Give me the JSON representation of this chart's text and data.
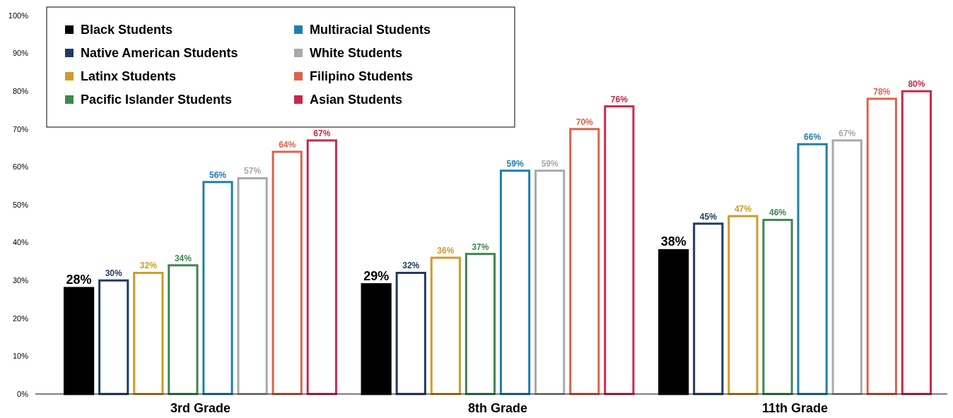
{
  "chart_data": {
    "type": "bar",
    "categories": [
      "3rd Grade",
      "8th Grade",
      "11th Grade"
    ],
    "series": [
      {
        "name": "Black Students",
        "color": "#000000",
        "values": [
          28,
          29,
          38
        ],
        "value_labels": [
          "28%",
          "29%",
          "38%"
        ]
      },
      {
        "name": "Native American Students",
        "color": "#1f3b63",
        "values": [
          30,
          32,
          45
        ],
        "value_labels": [
          "30%",
          "32%",
          "45%"
        ]
      },
      {
        "name": "Latinx Students",
        "color": "#d29a2a",
        "values": [
          32,
          36,
          47
        ],
        "value_labels": [
          "32%",
          "36%",
          "47%"
        ]
      },
      {
        "name": "Pacific Islander Students",
        "color": "#3f8550",
        "values": [
          34,
          37,
          46
        ],
        "value_labels": [
          "34%",
          "37%",
          "46%"
        ]
      },
      {
        "name": "Multiracial Students",
        "color": "#1f7db3",
        "values": [
          56,
          59,
          66
        ],
        "value_labels": [
          "56%",
          "59%",
          "66%"
        ]
      },
      {
        "name": "White Students",
        "color": "#a9a9a9",
        "values": [
          57,
          59,
          67
        ],
        "value_labels": [
          "57%",
          "59%",
          "67%"
        ]
      },
      {
        "name": "Filipino Students",
        "color": "#e0624b",
        "values": [
          64,
          70,
          78
        ],
        "value_labels": [
          "64%",
          "70%",
          "78%"
        ]
      },
      {
        "name": "Asian Students",
        "color": "#c8294b",
        "values": [
          67,
          76,
          80
        ],
        "value_labels": [
          "67%",
          "76%",
          "80%"
        ]
      }
    ],
    "ylim": [
      0,
      100
    ],
    "yticks": [
      {
        "value": 0,
        "label": "0%"
      },
      {
        "value": 10,
        "label": "10%"
      },
      {
        "value": 20,
        "label": "20%"
      },
      {
        "value": 30,
        "label": "30%"
      },
      {
        "value": 40,
        "label": "40%"
      },
      {
        "value": 50,
        "label": "50%"
      },
      {
        "value": 60,
        "label": "60%"
      },
      {
        "value": 70,
        "label": "70%"
      },
      {
        "value": 80,
        "label": "80%"
      },
      {
        "value": 90,
        "label": "90%"
      },
      {
        "value": 100,
        "label": "100%"
      }
    ],
    "legend": "top left",
    "grid": false
  }
}
